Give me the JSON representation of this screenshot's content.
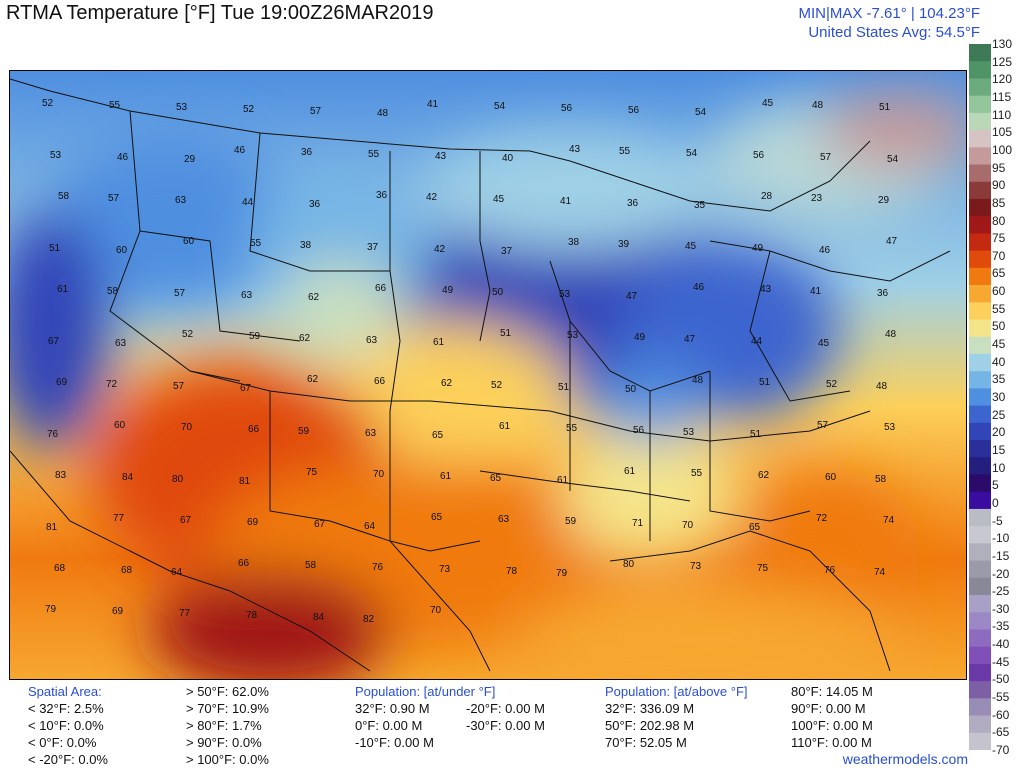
{
  "header": {
    "title": "RTMA Temperature [°F]  Tue 19:00Z26MAR2019",
    "minmax": "MIN|MAX -7.61° | 104.23°F",
    "avg": "United States Avg: 54.5°F"
  },
  "colorbar": {
    "ticks": [
      "130",
      "125",
      "120",
      "115",
      "110",
      "105",
      "100",
      "95",
      "90",
      "85",
      "80",
      "75",
      "70",
      "65",
      "60",
      "55",
      "50",
      "45",
      "40",
      "35",
      "30",
      "25",
      "20",
      "15",
      "10",
      "5",
      "0",
      "-5",
      "-10",
      "-15",
      "-20",
      "-25",
      "-30",
      "-35",
      "-40",
      "-45",
      "-50",
      "-55",
      "-60",
      "-65",
      "-70"
    ],
    "colors": [
      "#3d7a55",
      "#4f9466",
      "#6cab7e",
      "#92c59a",
      "#b8d8b8",
      "#d6c3c3",
      "#c49a9a",
      "#a86c6c",
      "#8b3a3a",
      "#7a1a1a",
      "#a01818",
      "#c42a12",
      "#e04a0a",
      "#f07a10",
      "#f7a830",
      "#fcd05a",
      "#f5e58a",
      "#c9e0c0",
      "#9fd0e6",
      "#74b5e6",
      "#4f8fe0",
      "#3c65cf",
      "#3245b8",
      "#2a2f9a",
      "#241e7e",
      "#2a0b6a",
      "#3a0ca0",
      "#b9bcc4",
      "#c8c8d0",
      "#b0b0bc",
      "#9a9aaa",
      "#888898",
      "#a9a0c8",
      "#9d88c6",
      "#8f6bc0",
      "#8050b8",
      "#6c39a8",
      "#7d5fa6",
      "#9a8db5",
      "#b2acc2",
      "#c5c3ce"
    ]
  },
  "map_labels": [
    {
      "t": "52"
    },
    {
      "t": "55"
    },
    {
      "t": "53"
    },
    {
      "t": "52"
    },
    {
      "t": "57"
    },
    {
      "t": "48"
    },
    {
      "t": "41"
    },
    {
      "t": "54"
    },
    {
      "t": "56"
    },
    {
      "t": "56"
    },
    {
      "t": "54"
    },
    {
      "t": "45"
    },
    {
      "t": "48"
    },
    {
      "t": "51"
    },
    {
      "t": "53"
    },
    {
      "t": "46"
    },
    {
      "t": "29"
    },
    {
      "t": "46"
    },
    {
      "t": "36"
    },
    {
      "t": "55"
    },
    {
      "t": "43"
    },
    {
      "t": "40"
    },
    {
      "t": "43"
    },
    {
      "t": "55"
    },
    {
      "t": "54"
    },
    {
      "t": "56"
    },
    {
      "t": "57"
    },
    {
      "t": "54"
    },
    {
      "t": "58"
    },
    {
      "t": "57"
    },
    {
      "t": "63"
    },
    {
      "t": "44"
    },
    {
      "t": "36"
    },
    {
      "t": "36"
    },
    {
      "t": "42"
    },
    {
      "t": "45"
    },
    {
      "t": "41"
    },
    {
      "t": "36"
    },
    {
      "t": "35"
    },
    {
      "t": "28"
    },
    {
      "t": "23"
    },
    {
      "t": "29"
    },
    {
      "t": "51"
    },
    {
      "t": "60"
    },
    {
      "t": "60"
    },
    {
      "t": "55"
    },
    {
      "t": "38"
    },
    {
      "t": "37"
    },
    {
      "t": "42"
    },
    {
      "t": "37"
    },
    {
      "t": "38"
    },
    {
      "t": "39"
    },
    {
      "t": "45"
    },
    {
      "t": "49"
    },
    {
      "t": "46"
    },
    {
      "t": "47"
    },
    {
      "t": "61"
    },
    {
      "t": "58"
    },
    {
      "t": "57"
    },
    {
      "t": "63"
    },
    {
      "t": "62"
    },
    {
      "t": "66"
    },
    {
      "t": "49"
    },
    {
      "t": "50"
    },
    {
      "t": "53"
    },
    {
      "t": "47"
    },
    {
      "t": "46"
    },
    {
      "t": "43"
    },
    {
      "t": "41"
    },
    {
      "t": "36"
    },
    {
      "t": "67"
    },
    {
      "t": "63"
    },
    {
      "t": "52"
    },
    {
      "t": "59"
    },
    {
      "t": "62"
    },
    {
      "t": "63"
    },
    {
      "t": "61"
    },
    {
      "t": "51"
    },
    {
      "t": "53"
    },
    {
      "t": "49"
    },
    {
      "t": "47"
    },
    {
      "t": "44"
    },
    {
      "t": "45"
    },
    {
      "t": "48"
    },
    {
      "t": "69"
    },
    {
      "t": "72"
    },
    {
      "t": "57"
    },
    {
      "t": "67"
    },
    {
      "t": "62"
    },
    {
      "t": "66"
    },
    {
      "t": "62"
    },
    {
      "t": "52"
    },
    {
      "t": "51"
    },
    {
      "t": "50"
    },
    {
      "t": "48"
    },
    {
      "t": "51"
    },
    {
      "t": "52"
    },
    {
      "t": "48"
    },
    {
      "t": "76"
    },
    {
      "t": "60"
    },
    {
      "t": "70"
    },
    {
      "t": "66"
    },
    {
      "t": "59"
    },
    {
      "t": "63"
    },
    {
      "t": "65"
    },
    {
      "t": "61"
    },
    {
      "t": "55"
    },
    {
      "t": "56"
    },
    {
      "t": "53"
    },
    {
      "t": "51"
    },
    {
      "t": "57"
    },
    {
      "t": "53"
    },
    {
      "t": "83"
    },
    {
      "t": "84"
    },
    {
      "t": "80"
    },
    {
      "t": "81"
    },
    {
      "t": "75"
    },
    {
      "t": "70"
    },
    {
      "t": "61"
    },
    {
      "t": "65"
    },
    {
      "t": "61"
    },
    {
      "t": "61"
    },
    {
      "t": "55"
    },
    {
      "t": "62"
    },
    {
      "t": "60"
    },
    {
      "t": "58"
    },
    {
      "t": "81"
    },
    {
      "t": "77"
    },
    {
      "t": "67"
    },
    {
      "t": "69"
    },
    {
      "t": "67"
    },
    {
      "t": "64"
    },
    {
      "t": "65"
    },
    {
      "t": "63"
    },
    {
      "t": "59"
    },
    {
      "t": "71"
    },
    {
      "t": "70"
    },
    {
      "t": "65"
    },
    {
      "t": "72"
    },
    {
      "t": "74"
    },
    {
      "t": "68"
    },
    {
      "t": "68"
    },
    {
      "t": "64"
    },
    {
      "t": "66"
    },
    {
      "t": "58"
    },
    {
      "t": "76"
    },
    {
      "t": "73"
    },
    {
      "t": "78"
    },
    {
      "t": "79"
    },
    {
      "t": "80"
    },
    {
      "t": "73"
    },
    {
      "t": "75"
    },
    {
      "t": "76"
    },
    {
      "t": "74"
    },
    {
      "t": "79"
    },
    {
      "t": "69"
    },
    {
      "t": "77"
    },
    {
      "t": "78"
    },
    {
      "t": "84"
    },
    {
      "t": "82"
    },
    {
      "t": "70"
    }
  ],
  "stats": {
    "spatial": {
      "header": "Spatial Area:",
      "left": [
        "< 32°F: 2.5%",
        "< 10°F: 0.0%",
        "< 0°F: 0.0%",
        "< -20°F: 0.0%"
      ],
      "right": [
        "> 50°F: 62.0%",
        "> 70°F: 10.9%",
        "> 80°F: 1.7%",
        "> 90°F: 0.0%",
        "> 100°F: 0.0%"
      ]
    },
    "pop_under": {
      "header": "Population: [at/under °F]",
      "left": [
        "32°F: 0.90 M",
        "0°F: 0.00 M",
        "-10°F: 0.00 M"
      ],
      "right": [
        "-20°F: 0.00 M",
        "-30°F: 0.00 M"
      ]
    },
    "pop_above": {
      "header": "Population: [at/above °F]",
      "left": [
        "32°F: 336.09 M",
        "50°F: 202.98 M",
        "70°F: 52.05 M"
      ],
      "right": [
        "80°F: 14.05 M",
        "90°F: 0.00 M",
        "100°F: 0.00 M",
        "110°F: 0.00 M"
      ]
    }
  },
  "footer": {
    "url": "weathermodels.com"
  }
}
